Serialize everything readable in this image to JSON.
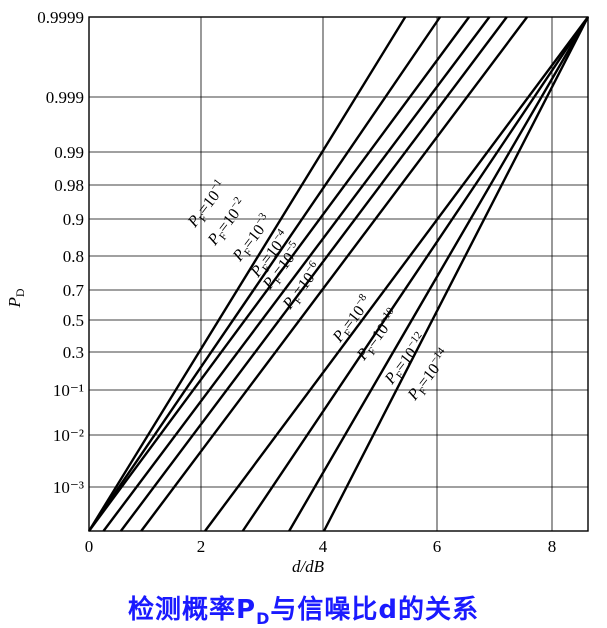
{
  "chart_data": {
    "type": "line",
    "xlabel": "d/dB",
    "ylabel": "P_D",
    "xlim": [
      0,
      8.6
    ],
    "x_ticks": [
      "0",
      "2",
      "4",
      "6",
      "8"
    ],
    "y_ticks": [
      "10⁻³",
      "10⁻²",
      "10⁻¹",
      "0.3",
      "0.5",
      "0.7",
      "0.8",
      "0.9",
      "0.98",
      "0.99",
      "0.999",
      "0.9999"
    ],
    "grid": true,
    "series": [
      {
        "name": "P_F=10^-1",
        "label_base": "P",
        "label_sub": "F",
        "label_mid": "=10",
        "label_exp": "−1",
        "x_start": 0.0,
        "x_end": 5.45
      },
      {
        "name": "P_F=10^-2",
        "label_base": "P",
        "label_sub": "F",
        "label_mid": "=10",
        "label_exp": "−2",
        "x_start": 0.0,
        "x_end": 6.05
      },
      {
        "name": "P_F=10^-3",
        "label_base": "P",
        "label_sub": "F",
        "label_mid": "=10",
        "label_exp": "−3",
        "x_start": 0.0,
        "x_end": 6.55
      },
      {
        "name": "P_F=10^-4",
        "label_base": "P",
        "label_sub": "F",
        "label_mid": "=10",
        "label_exp": "−4",
        "x_start": 0.25,
        "x_end": 6.9
      },
      {
        "name": "P_F=10^-5",
        "label_base": "P",
        "label_sub": "F",
        "label_mid": "=10",
        "label_exp": "−5",
        "x_start": 0.55,
        "x_end": 7.2
      },
      {
        "name": "P_F=10^-6",
        "label_base": "P",
        "label_sub": "F",
        "label_mid": "=10",
        "label_exp": "−6",
        "x_start": 0.9,
        "x_end": 7.55
      },
      {
        "name": "P_F=10^-8",
        "label_base": "P",
        "label_sub": "F",
        "label_mid": "=10",
        "label_exp": "−8",
        "x_start": 2.0,
        "x_end": 8.6
      },
      {
        "name": "P_F=10^-10",
        "label_base": "P",
        "label_sub": "F",
        "label_mid": "=10",
        "label_exp": "−10",
        "x_start": 2.65,
        "x_end": 8.6
      },
      {
        "name": "P_F=10^-12",
        "label_base": "P",
        "label_sub": "F",
        "label_mid": "=10",
        "label_exp": "−12",
        "x_start": 3.45,
        "x_end": 8.6
      },
      {
        "name": "P_F=10^-14",
        "label_base": "P",
        "label_sub": "F",
        "label_mid": "=10",
        "label_exp": "−14",
        "x_start": 4.05,
        "x_end": 8.6
      }
    ]
  },
  "caption": {
    "main": "检测概率P",
    "sub": "D",
    "rest": "与信噪比d的关系"
  }
}
